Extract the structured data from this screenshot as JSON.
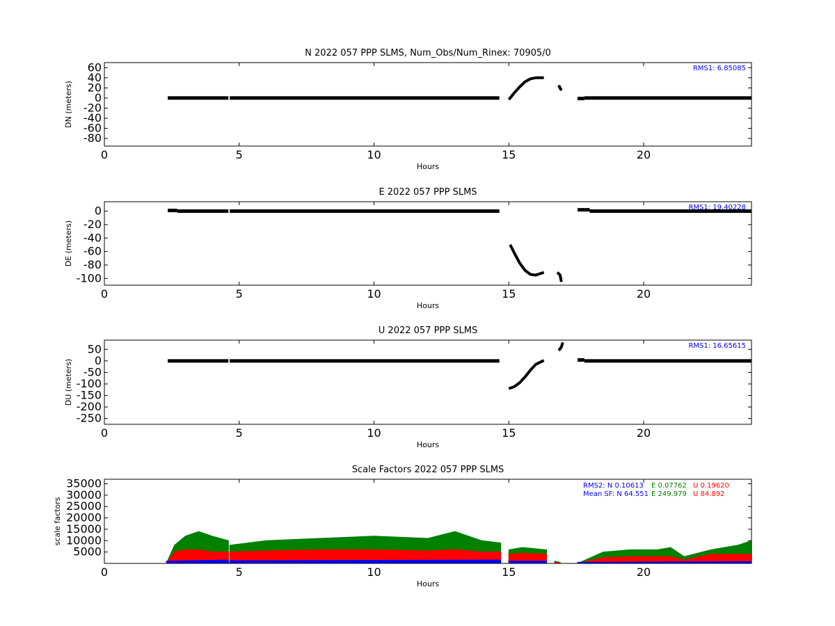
{
  "chart_data": [
    {
      "type": "scatter",
      "title": "N 2022 057 PPP  SLMS, Num_Obs/Num_Rinex: 70905/0",
      "xlabel": "Hours",
      "ylabel": "DN (meters)",
      "xlim": [
        0,
        24
      ],
      "ylim": [
        -95,
        70
      ],
      "x_ticks": [
        0,
        5,
        10,
        15,
        20
      ],
      "y_ticks": [
        60,
        40,
        20,
        0,
        -20,
        -40,
        -60,
        -80
      ],
      "annotation": {
        "text": "RMS1:  6.85085",
        "color": "#0000ff"
      },
      "series": [
        {
          "type": "segment",
          "x0": 2.35,
          "x1": 4.6,
          "y": 0
        },
        {
          "type": "segment",
          "x0": 4.65,
          "x1": 14.65,
          "y": 0
        },
        {
          "type": "curve",
          "x": [
            15.0,
            15.2,
            15.4,
            15.6,
            15.8,
            16.0,
            16.3
          ],
          "y": [
            -3,
            10,
            22,
            32,
            38,
            40,
            40
          ]
        },
        {
          "type": "curve",
          "x": [
            16.85,
            16.95
          ],
          "y": [
            25,
            15
          ]
        },
        {
          "type": "segment",
          "x0": 17.55,
          "x1": 17.8,
          "y": -1
        },
        {
          "type": "segment",
          "x0": 17.8,
          "x1": 24,
          "y": 0
        }
      ]
    },
    {
      "type": "scatter",
      "title": "E 2022 057 PPP  SLMS",
      "xlabel": "Hours",
      "ylabel": "DE (meters)",
      "xlim": [
        0,
        24
      ],
      "ylim": [
        -110,
        14
      ],
      "x_ticks": [
        0,
        5,
        10,
        15,
        20
      ],
      "y_ticks": [
        0,
        -20,
        -40,
        -60,
        -80,
        -100
      ],
      "annotation": {
        "text": "RMS1: 19.40228",
        "color": "#0000ff"
      },
      "series": [
        {
          "type": "segment",
          "x0": 2.35,
          "x1": 2.7,
          "y": 1
        },
        {
          "type": "segment",
          "x0": 2.7,
          "x1": 4.6,
          "y": 0
        },
        {
          "type": "segment",
          "x0": 4.65,
          "x1": 14.65,
          "y": 0
        },
        {
          "type": "curve",
          "x": [
            15.05,
            15.2,
            15.4,
            15.6,
            15.8,
            16.0,
            16.3
          ],
          "y": [
            -50,
            -62,
            -77,
            -88,
            -94,
            -95,
            -91
          ]
        },
        {
          "type": "curve",
          "x": [
            16.8,
            16.9,
            16.95
          ],
          "y": [
            -91,
            -95,
            -105
          ]
        },
        {
          "type": "segment",
          "x0": 17.55,
          "x1": 18.0,
          "y": 2
        },
        {
          "type": "segment",
          "x0": 18.0,
          "x1": 24,
          "y": 0
        }
      ]
    },
    {
      "type": "scatter",
      "title": "U 2022 057 PPP  SLMS",
      "xlabel": "Hours",
      "ylabel": "DU (meters)",
      "xlim": [
        0,
        24
      ],
      "ylim": [
        -275,
        90
      ],
      "x_ticks": [
        0,
        5,
        10,
        15,
        20
      ],
      "y_ticks": [
        50,
        0,
        -50,
        -100,
        -150,
        -200,
        -250
      ],
      "annotation": {
        "text": "RMS1: 16.65615",
        "color": "#0000ff"
      },
      "series": [
        {
          "type": "segment",
          "x0": 2.35,
          "x1": 4.6,
          "y": 0
        },
        {
          "type": "segment",
          "x0": 4.65,
          "x1": 14.65,
          "y": 0
        },
        {
          "type": "curve",
          "x": [
            15.0,
            15.2,
            15.4,
            15.6,
            15.8,
            16.0,
            16.3
          ],
          "y": [
            -120,
            -112,
            -95,
            -70,
            -40,
            -15,
            2
          ]
        },
        {
          "type": "curve",
          "x": [
            16.85,
            16.95,
            17.0
          ],
          "y": [
            45,
            60,
            80
          ]
        },
        {
          "type": "segment",
          "x0": 17.55,
          "x1": 17.8,
          "y": 4
        },
        {
          "type": "segment",
          "x0": 17.8,
          "x1": 24,
          "y": 0
        }
      ]
    },
    {
      "type": "scatter",
      "title": "Scale Factors 2022 057 PPP  SLMS",
      "xlabel": "Hours",
      "ylabel": "scale factors",
      "xlim": [
        0,
        24
      ],
      "ylim": [
        0,
        37000
      ],
      "x_ticks": [
        0,
        5,
        10,
        15,
        20
      ],
      "y_ticks": [
        35000,
        30000,
        25000,
        20000,
        15000,
        10000,
        5000
      ],
      "annotations": [
        {
          "label": "RMS2: N  0.10613",
          "color": "#0000ff"
        },
        {
          "label": "E  0.07762",
          "color": "#008000"
        },
        {
          "label": "U  0.19620",
          "color": "#ff0000"
        },
        {
          "label": "Mean SF: N  64.551",
          "color": "#0000ff"
        },
        {
          "label": "E 249.979",
          "color": "#008000"
        },
        {
          "label": "U  84.892",
          "color": "#ff0000"
        }
      ],
      "segments": [
        [
          2.3,
          4.6
        ],
        [
          4.65,
          14.7
        ],
        [
          15.0,
          16.4
        ],
        [
          16.7,
          16.9
        ],
        [
          17.55,
          24.0
        ]
      ],
      "series": [
        {
          "color": "#008000",
          "x": [
            2.3,
            2.6,
            3.0,
            3.5,
            4.0,
            4.6,
            4.65,
            6,
            8,
            10,
            12,
            13,
            14,
            14.7,
            15.0,
            15.5,
            16.4,
            16.7,
            16.9,
            17.55,
            18.5,
            19.5,
            20.5,
            21.0,
            21.5,
            22.5,
            23.5,
            24
          ],
          "y": [
            0,
            8000,
            12000,
            14000,
            12000,
            10000,
            8000,
            10000,
            11000,
            12000,
            11000,
            14000,
            10000,
            9000,
            6000,
            7000,
            6000,
            1000,
            500,
            0,
            5000,
            6000,
            6000,
            7000,
            3000,
            6000,
            8000,
            10000
          ]
        },
        {
          "color": "#ff0000",
          "x": [
            2.3,
            2.6,
            3.0,
            3.5,
            4.0,
            4.6,
            4.65,
            6,
            8,
            10,
            12,
            13,
            14,
            14.7,
            15.0,
            15.5,
            16.4,
            16.7,
            16.9,
            17.55,
            18.5,
            19.5,
            20.5,
            21.0,
            21.5,
            22.5,
            23.5,
            24
          ],
          "y": [
            0,
            5000,
            6000,
            6000,
            5000,
            5000,
            5000,
            5500,
            6000,
            6000,
            5500,
            6000,
            5000,
            5000,
            4000,
            4500,
            4000,
            500,
            300,
            0,
            2500,
            3000,
            3000,
            3000,
            1500,
            4000,
            4000,
            4000
          ]
        },
        {
          "color": "#0000ff",
          "x": [
            2.3,
            4.6,
            4.65,
            14.7,
            15.0,
            16.4,
            17.55,
            24
          ],
          "y": [
            1000,
            1500,
            1200,
            1500,
            1000,
            1000,
            500,
            800
          ]
        }
      ]
    }
  ]
}
